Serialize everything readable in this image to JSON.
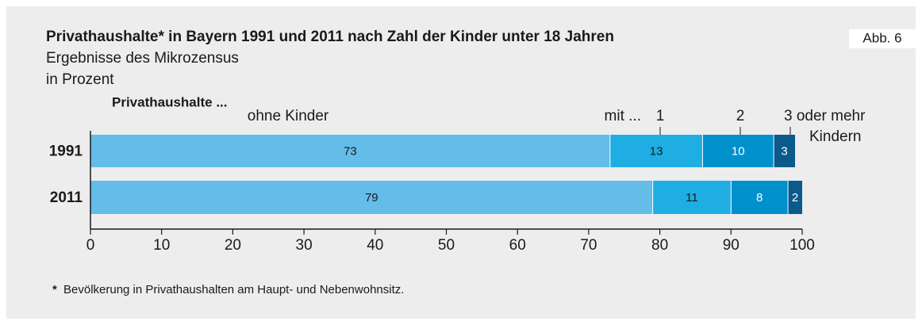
{
  "chart_data": {
    "type": "stacked_barh",
    "title": "Privathaushalte* in Bayern 1991 und 2011 nach Zahl der Kinder unter 18 Jahren",
    "subtitle": "Ergebnisse des Mikrozensus",
    "unit_label": "in Prozent",
    "badge": "Abb. 6",
    "legend_title": "Privathaushalte ...",
    "legend_prefix": "mit ...",
    "legend_suffix": "Kindern",
    "categories": [
      "1991",
      "2011"
    ],
    "series": [
      {
        "name": "ohne Kinder",
        "color": "#63bde8",
        "values": [
          73,
          79
        ]
      },
      {
        "name": "1",
        "color": "#1eaee3",
        "values": [
          13,
          11
        ]
      },
      {
        "name": "2",
        "color": "#0090cc",
        "values": [
          10,
          8
        ]
      },
      {
        "name": "3 oder mehr",
        "color": "#0a5a8c",
        "values": [
          3,
          2
        ]
      }
    ],
    "xlim": [
      0,
      100
    ],
    "xticks": [
      0,
      10,
      20,
      30,
      40,
      50,
      60,
      70,
      80,
      90,
      100
    ],
    "footnote": "Bevölkerung in Privathaushalten am Haupt- und Nebenwohnsitz.",
    "footnote_mark": "*"
  }
}
